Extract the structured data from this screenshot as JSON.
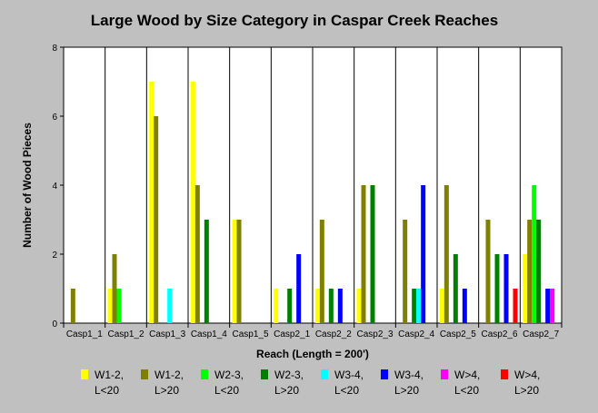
{
  "chart_data": {
    "type": "bar",
    "title": "Large Wood by Size Category in Caspar Creek Reaches",
    "xlabel": "Reach (Length = 200')",
    "ylabel": "Number of Wood Pieces",
    "ylim": [
      0,
      8
    ],
    "yticks": [
      0,
      2,
      4,
      6,
      8
    ],
    "grid": "vertical",
    "legend_position": "bottom",
    "categories": [
      "Casp1_1",
      "Casp1_2",
      "Casp1_3",
      "Casp1_4",
      "Casp1_5",
      "Casp2_1",
      "Casp2_2",
      "Casp2_3",
      "Casp2_4",
      "Casp2_5",
      "Casp2_6",
      "Casp2_7"
    ],
    "series": [
      {
        "name": [
          "W1-2,",
          "L<20"
        ],
        "color": "#ffff00",
        "values": [
          0,
          1,
          7,
          7,
          3,
          1,
          1,
          1,
          0,
          1,
          0,
          2
        ]
      },
      {
        "name": [
          "W1-2,",
          "L>20"
        ],
        "color": "#808000",
        "values": [
          1,
          2,
          6,
          4,
          3,
          0,
          3,
          4,
          3,
          4,
          3,
          3
        ]
      },
      {
        "name": [
          "W2-3,",
          "L<20"
        ],
        "color": "#00ff00",
        "values": [
          0,
          1,
          0,
          0,
          0,
          0,
          0,
          0,
          0,
          0,
          0,
          4
        ]
      },
      {
        "name": [
          "W2-3,",
          "L>20"
        ],
        "color": "#008000",
        "values": [
          0,
          0,
          0,
          3,
          0,
          1,
          1,
          4,
          1,
          2,
          2,
          3
        ]
      },
      {
        "name": [
          "W3-4,",
          "L<20"
        ],
        "color": "#00ffff",
        "values": [
          0,
          0,
          1,
          0,
          0,
          0,
          0,
          0,
          1,
          0,
          0,
          0
        ]
      },
      {
        "name": [
          "W3-4,",
          "L>20"
        ],
        "color": "#0000ff",
        "values": [
          0,
          0,
          0,
          0,
          0,
          2,
          1,
          0,
          4,
          1,
          2,
          1
        ]
      },
      {
        "name": [
          "W>4,",
          "L<20"
        ],
        "color": "#ff00ff",
        "values": [
          0,
          0,
          0,
          0,
          0,
          0,
          0,
          0,
          0,
          0,
          0,
          1
        ]
      },
      {
        "name": [
          "W>4,",
          "L>20"
        ],
        "color": "#ff0000",
        "values": [
          0,
          0,
          0,
          0,
          0,
          0,
          0,
          0,
          0,
          0,
          1,
          0
        ]
      }
    ]
  }
}
